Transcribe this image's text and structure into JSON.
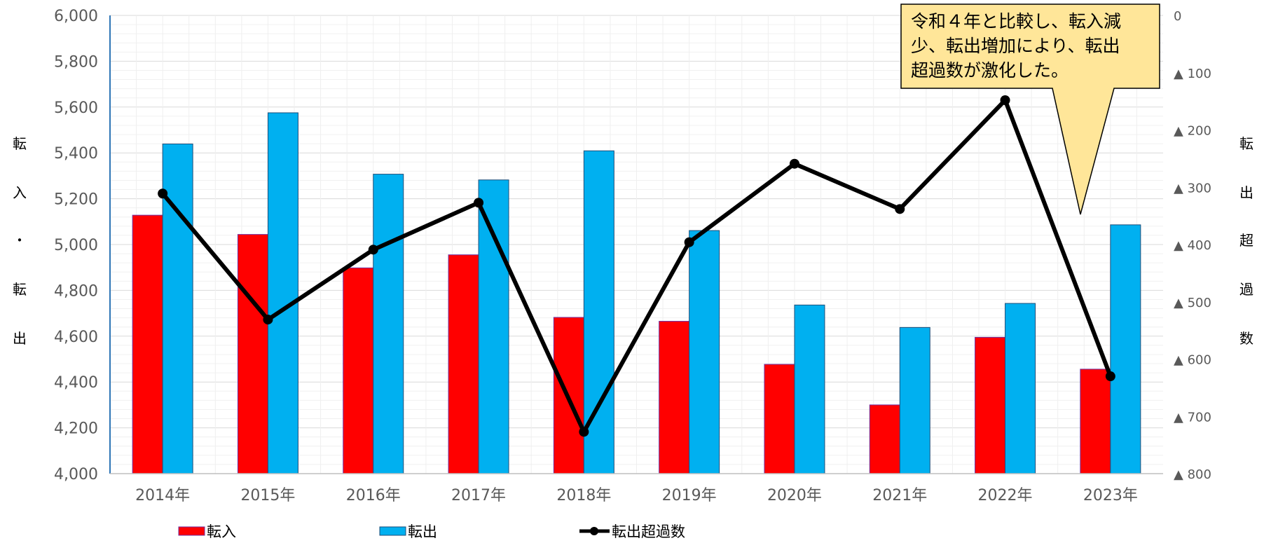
{
  "chart_data": {
    "type": "bar",
    "categories": [
      "2014年",
      "2015年",
      "2016年",
      "2017年",
      "2018年",
      "2019年",
      "2020年",
      "2021年",
      "2022年",
      "2023年"
    ],
    "series": [
      {
        "name": "転入",
        "type": "bar",
        "axis": "left",
        "color": "#FF0000",
        "values": [
          5128,
          5044,
          4898,
          4955,
          4682,
          4665,
          4477,
          4300,
          4595,
          4456
        ]
      },
      {
        "name": "転出",
        "type": "bar",
        "axis": "left",
        "color": "#00B0F0",
        "values": [
          5439,
          5575,
          5307,
          5282,
          5409,
          5061,
          4736,
          4638,
          4743,
          5086
        ]
      },
      {
        "name": "転出超過数",
        "type": "line",
        "axis": "right",
        "color": "#000000",
        "values": [
          -311,
          -531,
          -409,
          -327,
          -727,
          -396,
          -259,
          -338,
          -148,
          -630
        ]
      }
    ],
    "ylim": [
      4000,
      6000
    ],
    "y_ticks": [
      "4,000",
      "4,200",
      "4,400",
      "4,600",
      "4,800",
      "5,000",
      "5,200",
      "5,400",
      "5,600",
      "5,800",
      "6,000"
    ],
    "y2lim": [
      -800,
      0
    ],
    "y2_ticks": [
      "0",
      "▲ 100",
      "▲ 200",
      "▲ 300",
      "▲ 400",
      "▲ 500",
      "▲ 600",
      "▲ 700",
      "▲ 800"
    ],
    "ylabel_chars": [
      "転",
      "入",
      "・",
      "転",
      "出"
    ],
    "y2label_chars": [
      "転",
      "出",
      "超",
      "過",
      "数"
    ],
    "grid": true,
    "legend_position": "bottom",
    "annotation": {
      "lines": [
        "令和４年と比較し、転入減",
        "少、転出増加により、転出",
        "超過数が激化した。"
      ],
      "fill": "#FFE699"
    }
  }
}
